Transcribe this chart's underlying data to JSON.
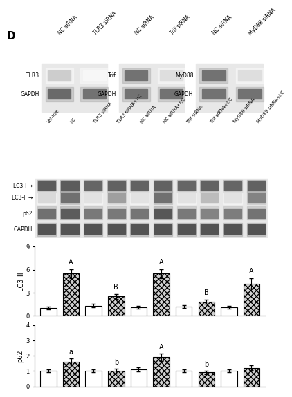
{
  "panel_label": "D",
  "blot_top_labels": [
    [
      "NC siRNA",
      "TLR3 siRNA"
    ],
    [
      "NC siRNA",
      "Trif siRNA"
    ],
    [
      "NC siRNA",
      "MyD88 siRNA"
    ]
  ],
  "blot_top_proteins": [
    "TLR3",
    "Trif",
    "MyD88"
  ],
  "blot_main_labels": [
    "Vehicle",
    "I:C",
    "TLR3 siRNA",
    "TLR3 siRNA+I:C",
    "NC siRNA",
    "NC siRNA+I:C",
    "Trif siRNA",
    "Trif siRNA+I:C",
    "MyD88 siRNA",
    "MyD88 siRNA+I:C"
  ],
  "blot_main_proteins": [
    "LC3-I",
    "LC3-II",
    "p62",
    "GAPDH"
  ],
  "lc3ii_values": [
    1.0,
    5.5,
    1.3,
    2.5,
    1.1,
    5.5,
    1.2,
    1.8,
    1.1,
    4.2
  ],
  "lc3ii_errors": [
    0.2,
    0.6,
    0.2,
    0.3,
    0.15,
    0.6,
    0.2,
    0.3,
    0.2,
    0.7
  ],
  "lc3ii_labels": [
    "",
    "A",
    "",
    "B",
    "",
    "A",
    "",
    "B",
    "",
    "A"
  ],
  "lc3ii_ylim": [
    0,
    9
  ],
  "lc3ii_yticks": [
    0,
    3,
    6,
    9
  ],
  "lc3ii_ylabel": "LC3-II",
  "p62_values": [
    1.0,
    1.6,
    1.0,
    1.0,
    1.1,
    1.9,
    1.0,
    0.9,
    1.0,
    1.2
  ],
  "p62_errors": [
    0.1,
    0.2,
    0.1,
    0.15,
    0.15,
    0.25,
    0.1,
    0.1,
    0.1,
    0.15
  ],
  "p62_labels": [
    "",
    "a",
    "",
    "b",
    "",
    "A",
    "",
    "b",
    "",
    ""
  ],
  "p62_ylim": [
    0,
    4
  ],
  "p62_yticks": [
    0,
    1,
    2,
    3,
    4
  ],
  "p62_ylabel": "p62",
  "bar_color_plain": "#ffffff",
  "bar_color_hatch": "#e0e0e0",
  "bar_edge_color": "#000000",
  "hatch_pattern": "xxxx",
  "background_color": "#ffffff"
}
